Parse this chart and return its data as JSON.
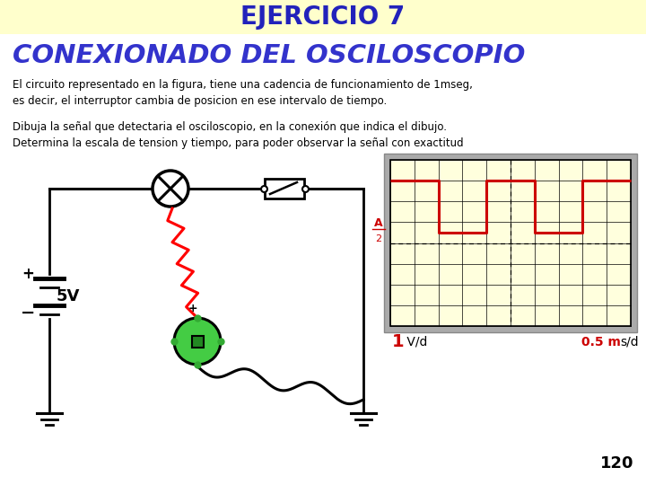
{
  "title": "EJERCICIO 7",
  "title_bg": "#FFFFCC",
  "subtitle": "CONEXIONADO DEL OSCILOSCOPIO",
  "subtitle_color": "#3333CC",
  "body_text1": "El circuito representado en la figura, tiene una cadencia de funcionamiento de 1mseg,\nes decir, el interruptor cambia de posicion en ese intervalo de tiempo.",
  "body_text2": "Dibuja la señal que detectaria el osciloscopio, en la conexión que indica el dibujo.\nDetermina la escala de tension y tiempo, para poder observar la señal con exactitud",
  "page_number": "120",
  "bg_color": "#FFFFFF",
  "osc_bg": "#FFFFDD",
  "osc_border": "#AAAAAA",
  "signal_color": "#CC0000",
  "label_color": "#CC0000",
  "battery_voltage": "5V"
}
